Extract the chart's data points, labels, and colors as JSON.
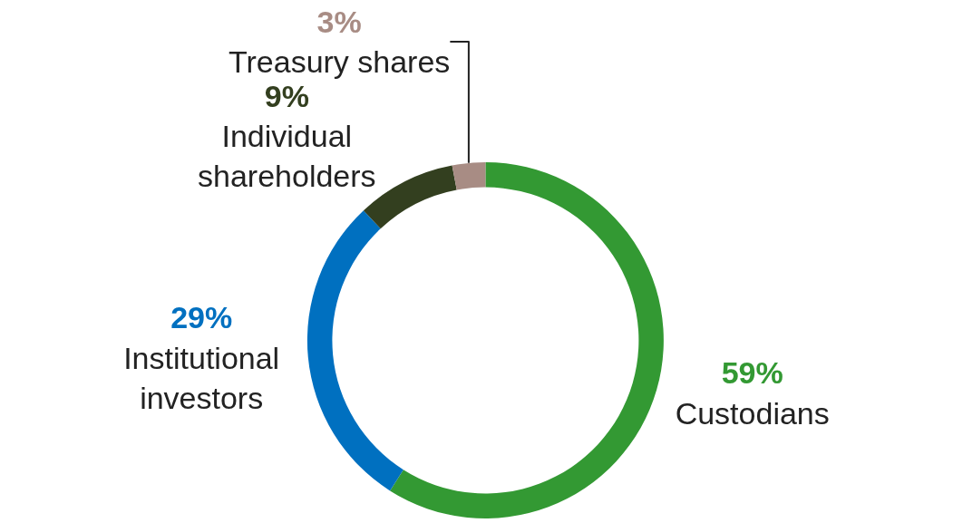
{
  "chart_data": {
    "type": "donut",
    "categories": [
      "Custodians",
      "Institutional investors",
      "Individual shareholders",
      "Treasury shares"
    ],
    "values": [
      59,
      29,
      9,
      3
    ],
    "value_labels": [
      "59%",
      "29%",
      "9%",
      "3%"
    ],
    "colors": [
      "#339933",
      "#0070c0",
      "#333f1f",
      "#a88c84"
    ],
    "legend": false
  }
}
